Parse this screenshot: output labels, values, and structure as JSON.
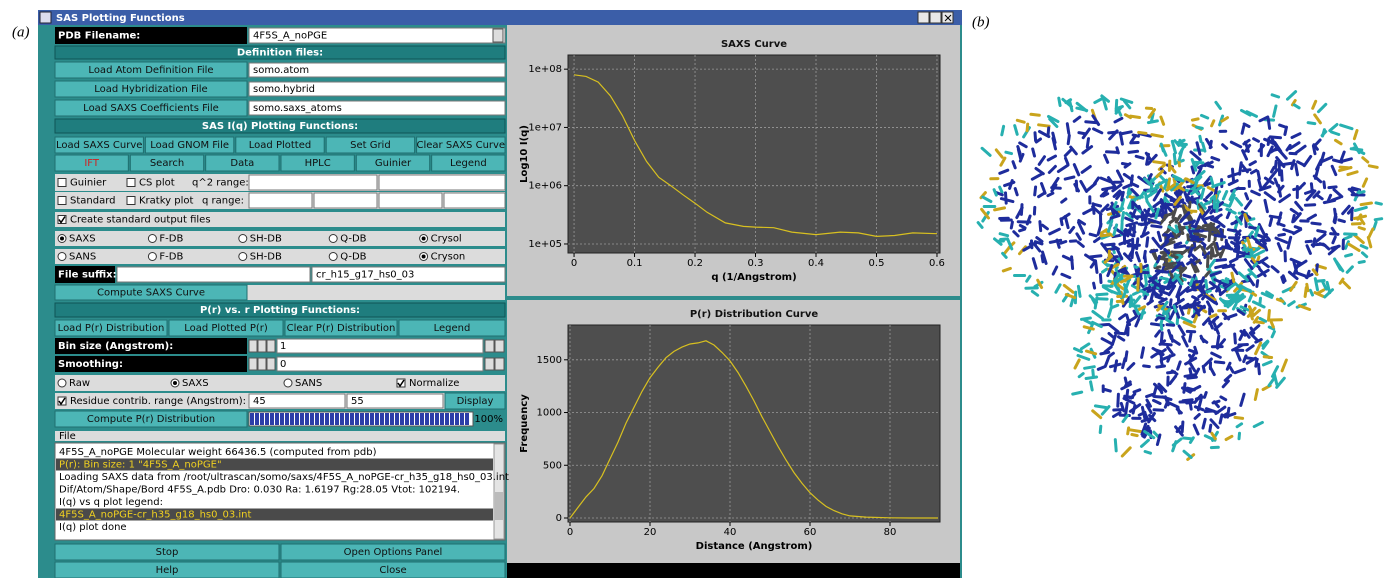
{
  "panel_labels": [
    "(a)",
    "(b)"
  ],
  "window": {
    "title": "SAS Plotting Functions"
  },
  "left_panel": {
    "rows": [
      [
        {
          "kind": "label-dark",
          "text": "PDB Filename:"
        },
        {
          "kind": "combo",
          "text": "4F5S_A_noPGE"
        }
      ],
      [
        {
          "kind": "header",
          "text": "Definition files:"
        }
      ],
      [
        {
          "kind": "button",
          "text": "Load Atom Definition File"
        },
        {
          "kind": "field",
          "text": "somo.atom"
        }
      ],
      [
        {
          "kind": "button",
          "text": "Load Hybridization File"
        },
        {
          "kind": "field",
          "text": "somo.hybrid"
        }
      ],
      [
        {
          "kind": "button",
          "text": "Load SAXS Coefficients File"
        },
        {
          "kind": "field",
          "text": "somo.saxs_atoms"
        }
      ],
      [
        {
          "kind": "header",
          "text": "SAS I(q) Plotting Functions:"
        }
      ],
      [
        {
          "kind": "button",
          "text": "Load SAXS Curve"
        },
        {
          "kind": "button",
          "text": "Load GNOM File"
        },
        {
          "kind": "button",
          "text": "Load Plotted"
        },
        {
          "kind": "button",
          "text": "Set Grid"
        },
        {
          "kind": "button",
          "text": "Clear SAXS Curve"
        }
      ],
      [
        {
          "kind": "button",
          "text": "IFT",
          "color": "#d02020"
        },
        {
          "kind": "button",
          "text": "Search"
        },
        {
          "kind": "button",
          "text": "Data"
        },
        {
          "kind": "button",
          "text": "HPLC"
        },
        {
          "kind": "button",
          "text": "Guinier"
        },
        {
          "kind": "button",
          "text": "Legend"
        }
      ],
      [
        {
          "kind": "check",
          "text": "Guinier",
          "checked": false
        },
        {
          "kind": "check",
          "text": "CS plot",
          "checked": false
        },
        {
          "kind": "label",
          "text": "q^2 range:"
        },
        {
          "kind": "field"
        },
        {
          "kind": "field"
        }
      ],
      [
        {
          "kind": "check",
          "text": "Standard",
          "checked": false
        },
        {
          "kind": "check",
          "text": "Kratky plot",
          "checked": false
        },
        {
          "kind": "label",
          "text": "q range:"
        },
        {
          "kind": "field"
        },
        {
          "kind": "field"
        },
        {
          "kind": "field"
        },
        {
          "kind": "field"
        }
      ],
      [
        {
          "kind": "check",
          "text": "Create standard output files",
          "checked": true
        }
      ],
      [
        {
          "kind": "radio",
          "text": "SAXS",
          "checked": true
        },
        {
          "kind": "radio",
          "text": "F-DB",
          "checked": false
        },
        {
          "kind": "radio",
          "text": "SH-DB",
          "checked": false
        },
        {
          "kind": "radio",
          "text": "Q-DB",
          "checked": false
        },
        {
          "kind": "radio",
          "text": "Crysol",
          "checked": true
        }
      ],
      [
        {
          "kind": "radio",
          "text": "SANS",
          "checked": false
        },
        {
          "kind": "radio",
          "text": "F-DB",
          "checked": false
        },
        {
          "kind": "radio",
          "text": "SH-DB",
          "checked": false
        },
        {
          "kind": "radio",
          "text": "Q-DB",
          "checked": false
        },
        {
          "kind": "radio",
          "text": "Cryson",
          "checked": true
        }
      ],
      [
        {
          "kind": "label-dark",
          "text": "File suffix:"
        },
        {
          "kind": "field"
        },
        {
          "kind": "field",
          "text": "cr_h15_g17_hs0_03"
        }
      ],
      [
        {
          "kind": "button",
          "text": "Compute SAXS Curve"
        }
      ],
      [
        {
          "kind": "header",
          "text": "P(r) vs. r  Plotting Functions:"
        }
      ],
      [
        {
          "kind": "button",
          "text": "Load P(r) Distribution"
        },
        {
          "kind": "button",
          "text": "Load Plotted P(r)"
        },
        {
          "kind": "button",
          "text": "Clear P(r) Distribution"
        },
        {
          "kind": "button",
          "text": "Legend"
        }
      ],
      [
        {
          "kind": "label-dark",
          "text": "Bin size (Angstrom):"
        },
        {
          "kind": "spin",
          "text": "1"
        }
      ],
      [
        {
          "kind": "label-dark",
          "text": "Smoothing:"
        },
        {
          "kind": "spin",
          "text": "0"
        }
      ],
      [
        {
          "kind": "radio",
          "text": "Raw",
          "checked": false
        },
        {
          "kind": "radio",
          "text": "SAXS",
          "checked": true
        },
        {
          "kind": "radio",
          "text": "SANS",
          "checked": false
        },
        {
          "kind": "check",
          "text": "Normalize",
          "checked": true
        }
      ],
      [
        {
          "kind": "check",
          "text": "Residue contrib.  range (Angstrom):",
          "checked": true
        },
        {
          "kind": "field",
          "text": "45"
        },
        {
          "kind": "field",
          "text": "55"
        },
        {
          "kind": "button",
          "text": "Display"
        }
      ],
      [
        {
          "kind": "button",
          "text": "Compute P(r) Distribution"
        },
        {
          "kind": "progress",
          "value": 100,
          "label": "100%"
        }
      ],
      [
        {
          "kind": "menu",
          "text": "File"
        }
      ]
    ],
    "log": [
      {
        "text": "4F5S_A_noPGE Molecular weight 66436.5 (computed from pdb)",
        "highlighted": false
      },
      {
        "text": "P(r): Bin size: 1 \"4F5S_A_noPGE\"",
        "highlighted": true
      },
      {
        "text": "Loading SAXS data from /root/ultrascan/somo/saxs/4F5S_A_noPGE-cr_h35_g18_hs0_03.int",
        "highlighted": false
      },
      {
        "text": " Dif/Atom/Shape/Bord 4F5S_A.pdb  Dro:  0.030 Ra: 1.6197 Rg:28.05 Vtot: 102194.",
        "highlighted": false
      },
      {
        "text": "I(q) vs q plot legend:",
        "highlighted": false
      },
      {
        "text": "4F5S_A_noPGE-cr_h35_g18_hs0_03.int",
        "highlighted": true
      },
      {
        "text": "I(q) plot done",
        "highlighted": false
      }
    ],
    "bottom_rows": [
      [
        {
          "kind": "button",
          "text": "Stop"
        },
        {
          "kind": "button",
          "text": "Open Options Panel"
        }
      ],
      [
        {
          "kind": "button",
          "text": "Help"
        },
        {
          "kind": "button",
          "text": "Close"
        }
      ]
    ]
  },
  "chart_data": [
    {
      "type": "line",
      "title": "SAXS Curve",
      "x_label": "q (1/Angstrom)",
      "y_label": "Log10 I(q)",
      "x": [
        0,
        0.02,
        0.04,
        0.06,
        0.08,
        0.1,
        0.12,
        0.14,
        0.16,
        0.18,
        0.2,
        0.22,
        0.25,
        0.28,
        0.3,
        0.33,
        0.36,
        0.4,
        0.44,
        0.47,
        0.5,
        0.53,
        0.56,
        0.6
      ],
      "values": [
        80000000,
        75000000,
        60000000,
        35000000,
        16000000,
        6000000,
        2600000,
        1400000,
        1000000,
        700000,
        500000,
        350000,
        230000,
        200000,
        195000,
        190000,
        160000,
        145000,
        160000,
        155000,
        135000,
        140000,
        155000,
        150000
      ],
      "color": "#d8c020",
      "ylog": true,
      "grid": true,
      "xlim": [
        -0.01,
        0.605
      ],
      "ylim": [
        70000,
        175000000
      ],
      "xticks": [
        0,
        0.1,
        0.2,
        0.3,
        0.4,
        0.5,
        0.6
      ],
      "yticks": [
        {
          "value": 100000,
          "label": "1e+05"
        },
        {
          "value": 1000000,
          "label": "1e+06"
        },
        {
          "value": 10000000,
          "label": "1e+07"
        },
        {
          "value": 100000000,
          "label": "1e+08"
        }
      ]
    },
    {
      "type": "line",
      "title": "P(r) Distribution Curve",
      "x_label": "Distance (Angstrom)",
      "y_label": "Frequency",
      "x": [
        0,
        2,
        4,
        6,
        8,
        10,
        12,
        14,
        16,
        18,
        20,
        22,
        24,
        26,
        28,
        30,
        32,
        34,
        36,
        38,
        40,
        42,
        44,
        46,
        48,
        50,
        52,
        54,
        56,
        58,
        60,
        62,
        64,
        66,
        68,
        70,
        74,
        80,
        85,
        92
      ],
      "values": [
        0,
        100,
        200,
        280,
        400,
        560,
        720,
        900,
        1050,
        1200,
        1330,
        1430,
        1520,
        1580,
        1620,
        1650,
        1660,
        1680,
        1640,
        1570,
        1490,
        1380,
        1250,
        1110,
        960,
        820,
        680,
        550,
        430,
        330,
        240,
        170,
        110,
        70,
        40,
        20,
        8,
        2,
        0,
        0
      ],
      "color": "#d8c020",
      "ylog": false,
      "grid": true,
      "xlim": [
        -0.5,
        92.5
      ],
      "ylim": [
        -38,
        1830
      ],
      "xticks": [
        0,
        20,
        40,
        60,
        80
      ],
      "yticks": [
        0,
        500,
        1000,
        1500
      ]
    }
  ]
}
